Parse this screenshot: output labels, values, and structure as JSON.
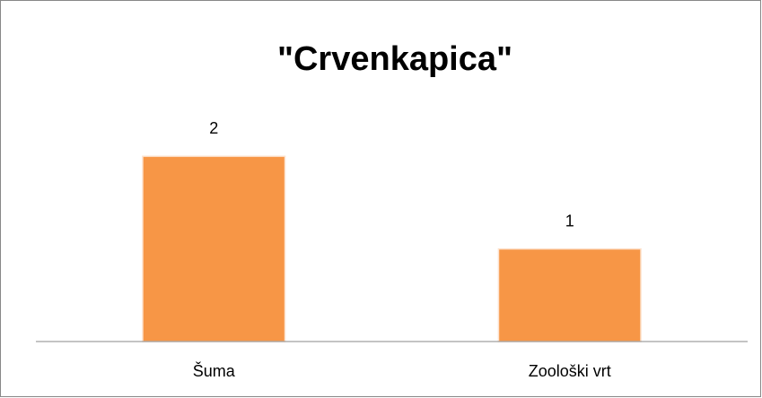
{
  "chart_data": {
    "type": "bar",
    "title": "\"Crvenkapica\"",
    "categories": [
      "Šuma",
      "Zoološki vrt"
    ],
    "values": [
      2,
      1
    ],
    "color": "#f79646",
    "ylim": [
      0,
      2.4
    ]
  }
}
